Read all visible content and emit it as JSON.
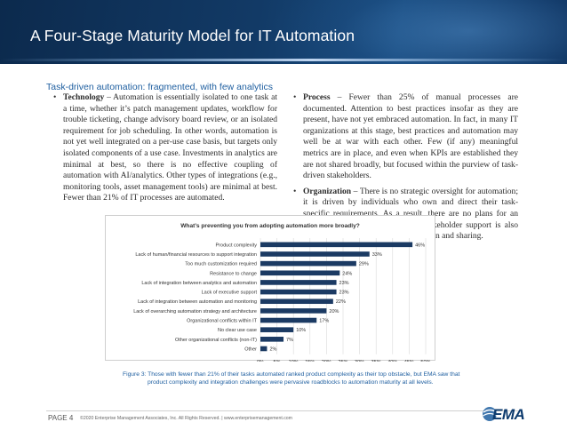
{
  "header": {
    "title": "A Four-Stage Maturity Model for IT Automation"
  },
  "section": {
    "heading": "Task-driven automation: fragmented, with few analytics"
  },
  "left_column": [
    {
      "term": "Technology",
      "text": " – Automation is essentially isolated to one task at a time, whether it’s patch management updates, workflow for trouble ticketing, change advisory board review, or an isolated requirement for job scheduling. In other words, automation is not yet well integrated on a per-use case basis, but targets only isolated components of a use case. Investments in analytics are minimal at best, so there is no effective coupling of automation with AI/analytics. Other types of integrations (e.g., monitoring tools, asset management tools) are minimal at best. Fewer than 21% of IT processes are automated."
    }
  ],
  "right_column": [
    {
      "term": "Process",
      "text": " – Fewer than 25% of manual processes are documented. Attention to best practices insofar as they are present, have not yet embraced automation. In fact, in many IT organizations at this stage, best practices and automation may well be at war with each other. Few (if any) meaningful metrics are in place, and even when KPIs are established they are not shared broadly, but focused within the purview of task-driven stakeholders."
    },
    {
      "term": "Organization",
      "text": " – There is no strategic oversight for automation; it is driven by individuals who own and direct their task-specific requirements. As a result, there are no plans for an automation center of excellence. Stakeholder support is also restricted by lack of use case integration and sharing."
    }
  ],
  "chart_data": {
    "type": "bar",
    "orientation": "horizontal",
    "title": "What’s preventing you from adopting automation more broadly?",
    "categories": [
      "Product complexity",
      "Lack of human/financial resources to support integration",
      "Too much customization required",
      "Resistance to change",
      "Lack of integration between analytics and automation",
      "Lack of executive support",
      "Lack of integration between automation and monitoring",
      "Lack of overarching automation strategy and architecture",
      "Organizational conflicts within IT",
      "No clear use case",
      "Other organizational conflicts (non-IT)",
      "Other"
    ],
    "values": [
      46,
      33,
      29,
      24,
      23,
      23,
      22,
      20,
      17,
      10,
      7,
      2
    ],
    "data_labels": [
      "46%",
      "33%",
      "29%",
      "24%",
      "23%",
      "23%",
      "22%",
      "20%",
      "17%",
      "10%",
      "7%",
      "2%"
    ],
    "xlim": [
      0,
      50
    ],
    "xticks": [
      "0%",
      "5%",
      "10%",
      "15%",
      "20%",
      "25%",
      "30%",
      "35%",
      "40%",
      "45%",
      "50%"
    ],
    "grid": true,
    "bar_color": "#1b3a63"
  },
  "caption": {
    "line1": "Figure 3: Those with fewer than 21% of their tasks automated ranked product complexity as their top obstacle, but EMA saw that",
    "line2": "product complexity and integration challenges were pervasive roadblocks to automation maturity at all levels."
  },
  "footer": {
    "page": "PAGE 4",
    "copyright": "©2020 Enterprise Management Associates, Inc. All Rights Reserved. | www.enterprisemanagement.com",
    "logo_text": "EMA"
  },
  "colors": {
    "banner": "#123a66",
    "accent_blue": "#1f5fa0",
    "bar": "#1b3a63"
  }
}
